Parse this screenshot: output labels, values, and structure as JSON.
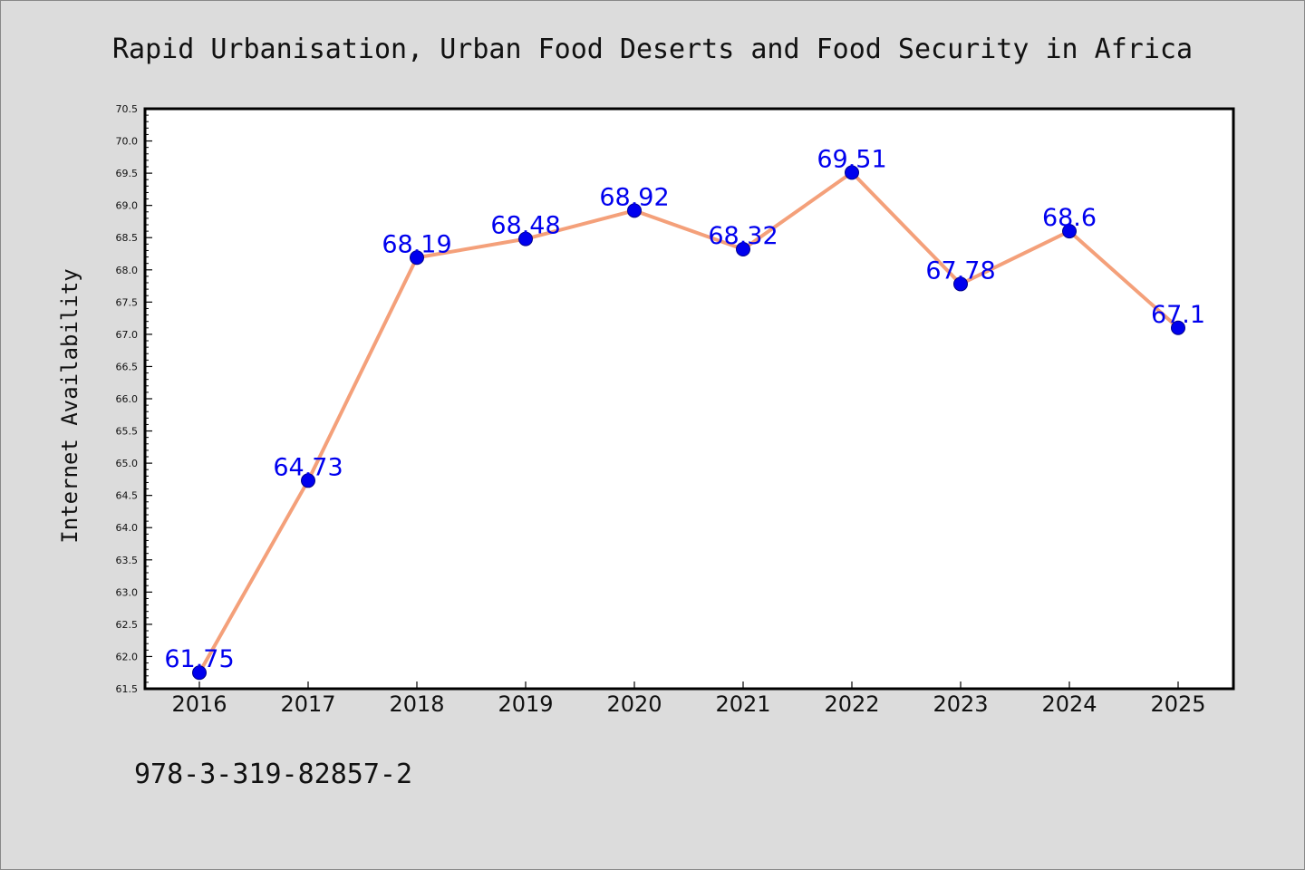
{
  "chart_data": {
    "type": "line",
    "title": "Rapid Urbanisation, Urban Food Deserts and Food Security in Africa",
    "ylabel": "Internet Availability",
    "xlabel": "",
    "categories": [
      "2016",
      "2017",
      "2018",
      "2019",
      "2020",
      "2021",
      "2022",
      "2023",
      "2024",
      "2025"
    ],
    "series": [
      {
        "values": [
          61.75,
          64.73,
          68.19,
          68.48,
          68.92,
          68.32,
          69.51,
          67.78,
          68.6,
          67.1
        ],
        "labels": [
          "61.75",
          "64.73",
          "68.19",
          "68.48",
          "68.92",
          "68.32",
          "69.51",
          "67.78",
          "68.6",
          "67.1"
        ],
        "line_color": "#f4a07a",
        "marker_color": "#0000ee"
      }
    ],
    "ylim": [
      61.5,
      70.5
    ],
    "yticks": [
      "61.5",
      "62.0",
      "62.5",
      "63.0",
      "63.5",
      "64.0",
      "64.5",
      "65.0",
      "65.5",
      "66.0",
      "66.5",
      "67.0",
      "67.5",
      "68.0",
      "68.5",
      "69.0",
      "69.5",
      "70.0",
      "70.5"
    ],
    "grid": false,
    "background": "#dcdcdc",
    "plot_background": "#ffffff"
  },
  "footer": {
    "isbn": "978-3-319-82857-2"
  }
}
